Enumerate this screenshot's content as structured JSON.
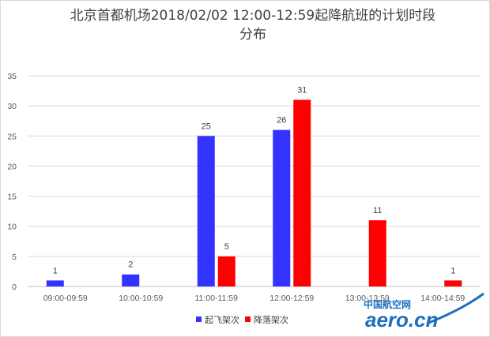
{
  "chart_data": {
    "type": "bar",
    "title_line1": "北京首都机场2018/02/02 12:00-12:59起降航班的计划时段",
    "title_line2": "分布",
    "categories": [
      "09:00-09:59",
      "10:00-10:59",
      "11:00-11:59",
      "12:00-12:59",
      "13:00-13:59",
      "14:00-14:59"
    ],
    "series": [
      {
        "name": "起飞架次",
        "color": "#3333ff",
        "values": [
          1,
          2,
          25,
          26,
          null,
          null
        ]
      },
      {
        "name": "降落架次",
        "color": "#ff0000",
        "values": [
          null,
          null,
          5,
          31,
          11,
          1
        ]
      }
    ],
    "ylim": [
      0,
      35
    ],
    "yticks": [
      0,
      5,
      10,
      15,
      20,
      25,
      30,
      35
    ],
    "grid": true,
    "legend_position": "bottom"
  },
  "watermark": {
    "cn": "中国航空网",
    "en": "aero.cn"
  }
}
